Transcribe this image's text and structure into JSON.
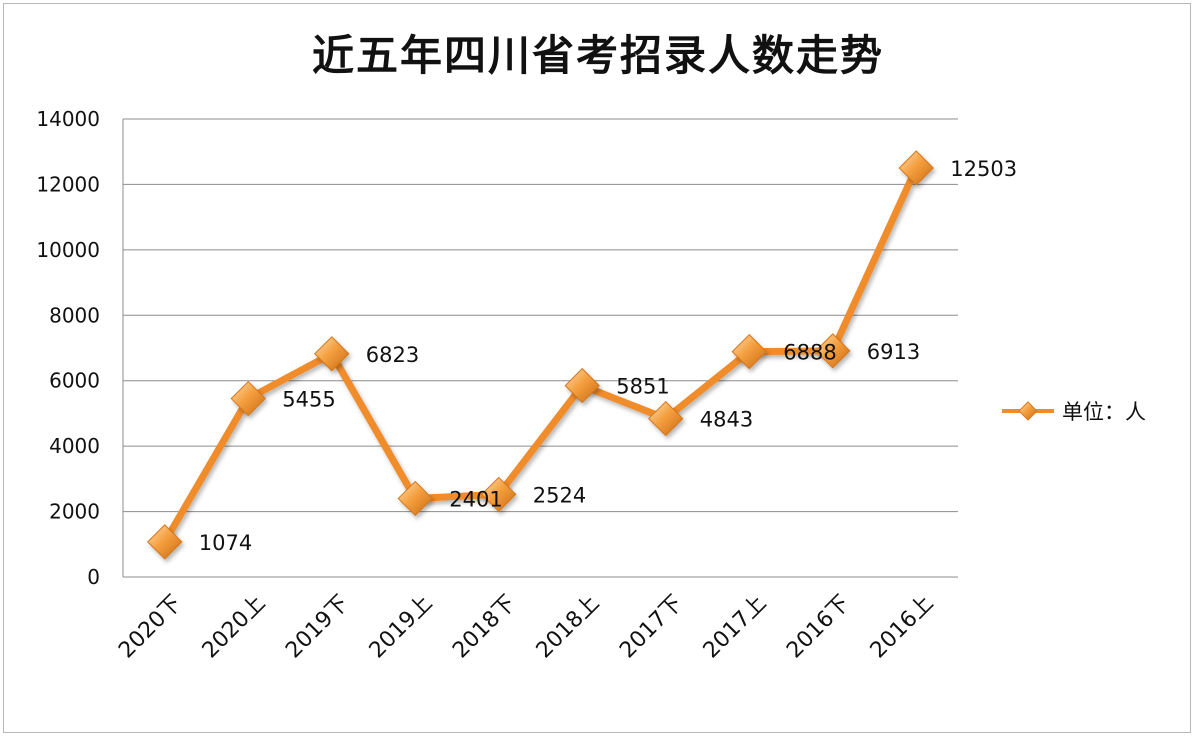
{
  "chart_data": {
    "type": "line",
    "title": "近五年四川省考招录人数走势",
    "categories": [
      "2020下",
      "2020上",
      "2019下",
      "2019上",
      "2018下",
      "2018上",
      "2017下",
      "2017上",
      "2016下",
      "2016上"
    ],
    "series": [
      {
        "name": "单位：人",
        "values": [
          1074,
          5455,
          6823,
          2401,
          2524,
          5851,
          4843,
          6888,
          6913,
          12503
        ],
        "color": "#f08c2a"
      }
    ],
    "yticks": [
      "0",
      "2000",
      "4000",
      "6000",
      "8000",
      "10000",
      "12000",
      "14000"
    ],
    "ylim": [
      0,
      14000
    ],
    "grid": true,
    "legend_position": "right",
    "marker": "diamond"
  }
}
